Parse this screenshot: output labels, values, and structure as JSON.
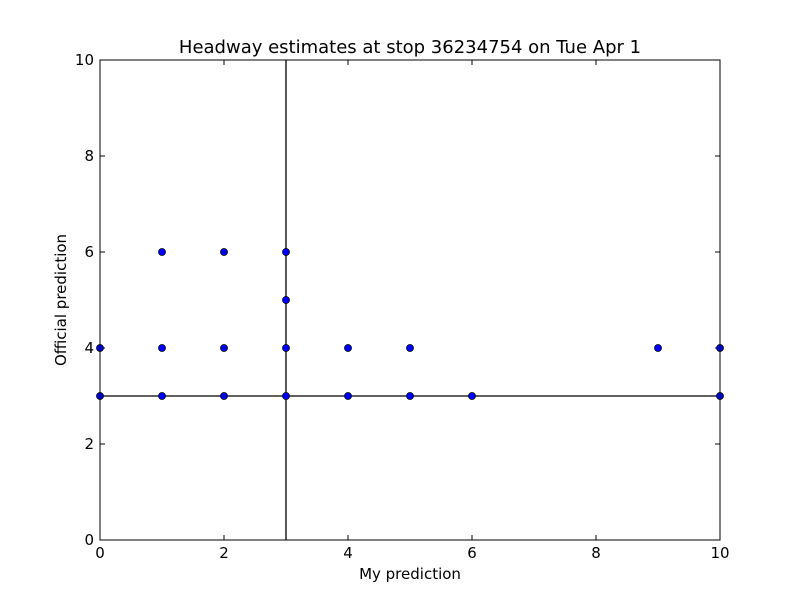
{
  "chart_data": {
    "type": "scatter",
    "title": "Headway estimates at stop 36234754 on Tue Apr 1",
    "xlabel": "My prediction",
    "ylabel": "Official prediction",
    "series": [
      {
        "color": "#0000ff",
        "x": [
          0,
          0,
          1,
          1,
          1,
          2,
          2,
          2,
          3,
          3,
          3,
          3,
          4,
          4,
          5,
          5,
          6,
          9,
          10,
          10
        ],
        "values": [
          4,
          3,
          6,
          4,
          3,
          6,
          4,
          3,
          6,
          5,
          4,
          3,
          4,
          3,
          4,
          3,
          3,
          4,
          4,
          3
        ]
      }
    ],
    "reference_lines": {
      "x": 3,
      "y": 3
    },
    "xlim": [
      0,
      10
    ],
    "ylim": [
      0,
      10
    ],
    "xticks": [
      0,
      2,
      4,
      6,
      8,
      10
    ],
    "yticks": [
      0,
      2,
      4,
      6,
      8,
      10
    ]
  }
}
